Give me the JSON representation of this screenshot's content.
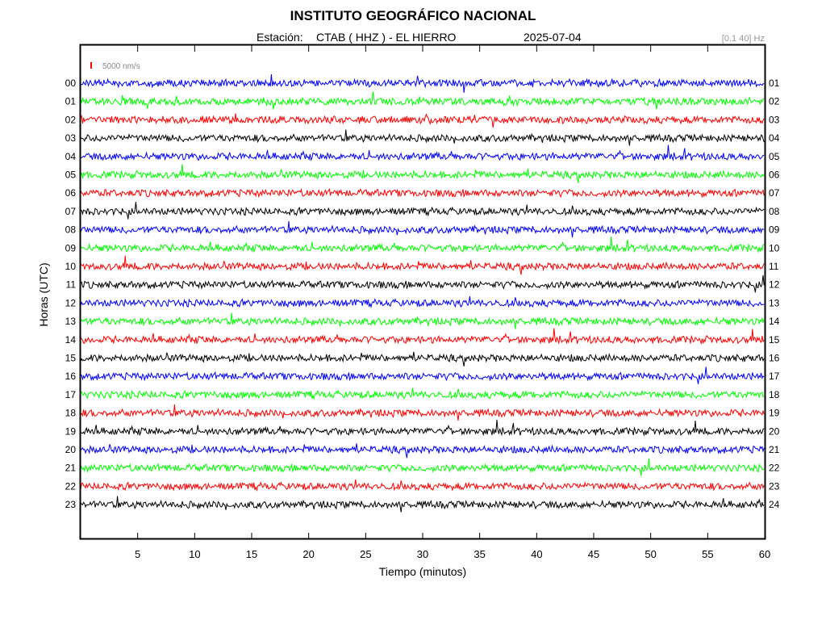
{
  "header": {
    "title": "INSTITUTO GEOGRÁFICO NACIONAL",
    "station_label": "Estación:",
    "station_name": "CTAB ( HHZ ) - EL HIERRO",
    "date": "2025-07-04",
    "filter": "[0.1 40] Hz"
  },
  "chart_data": {
    "type": "line",
    "title": "INSTITUTO GEOGRÁFICO NACIONAL",
    "xlabel": "Tiempo (minutos)",
    "ylabel": "Horas (UTC)",
    "xlim": [
      0,
      60
    ],
    "x_ticks": [
      "5",
      "10",
      "15",
      "20",
      "25",
      "30",
      "35",
      "40",
      "45",
      "50",
      "55",
      "60"
    ],
    "left_hour_labels": [
      "00",
      "01",
      "02",
      "03",
      "04",
      "05",
      "06",
      "07",
      "08",
      "09",
      "10",
      "11",
      "12",
      "13",
      "14",
      "15",
      "16",
      "17",
      "18",
      "19",
      "20",
      "21",
      "22",
      "23"
    ],
    "right_hour_labels": [
      "01",
      "02",
      "03",
      "04",
      "05",
      "06",
      "07",
      "08",
      "09",
      "10",
      "11",
      "12",
      "13",
      "14",
      "15",
      "16",
      "17",
      "18",
      "19",
      "20",
      "21",
      "22",
      "23",
      "24"
    ],
    "trace_colors": [
      "#0000ff",
      "#00ff00",
      "#ff0000",
      "#000000"
    ],
    "scale_bar": {
      "label": "5000 nm/s",
      "color": "#ff0000"
    },
    "grid": false,
    "series_note": "24 seismic traces, one per hour, colors cycle blue, green, red, black"
  }
}
